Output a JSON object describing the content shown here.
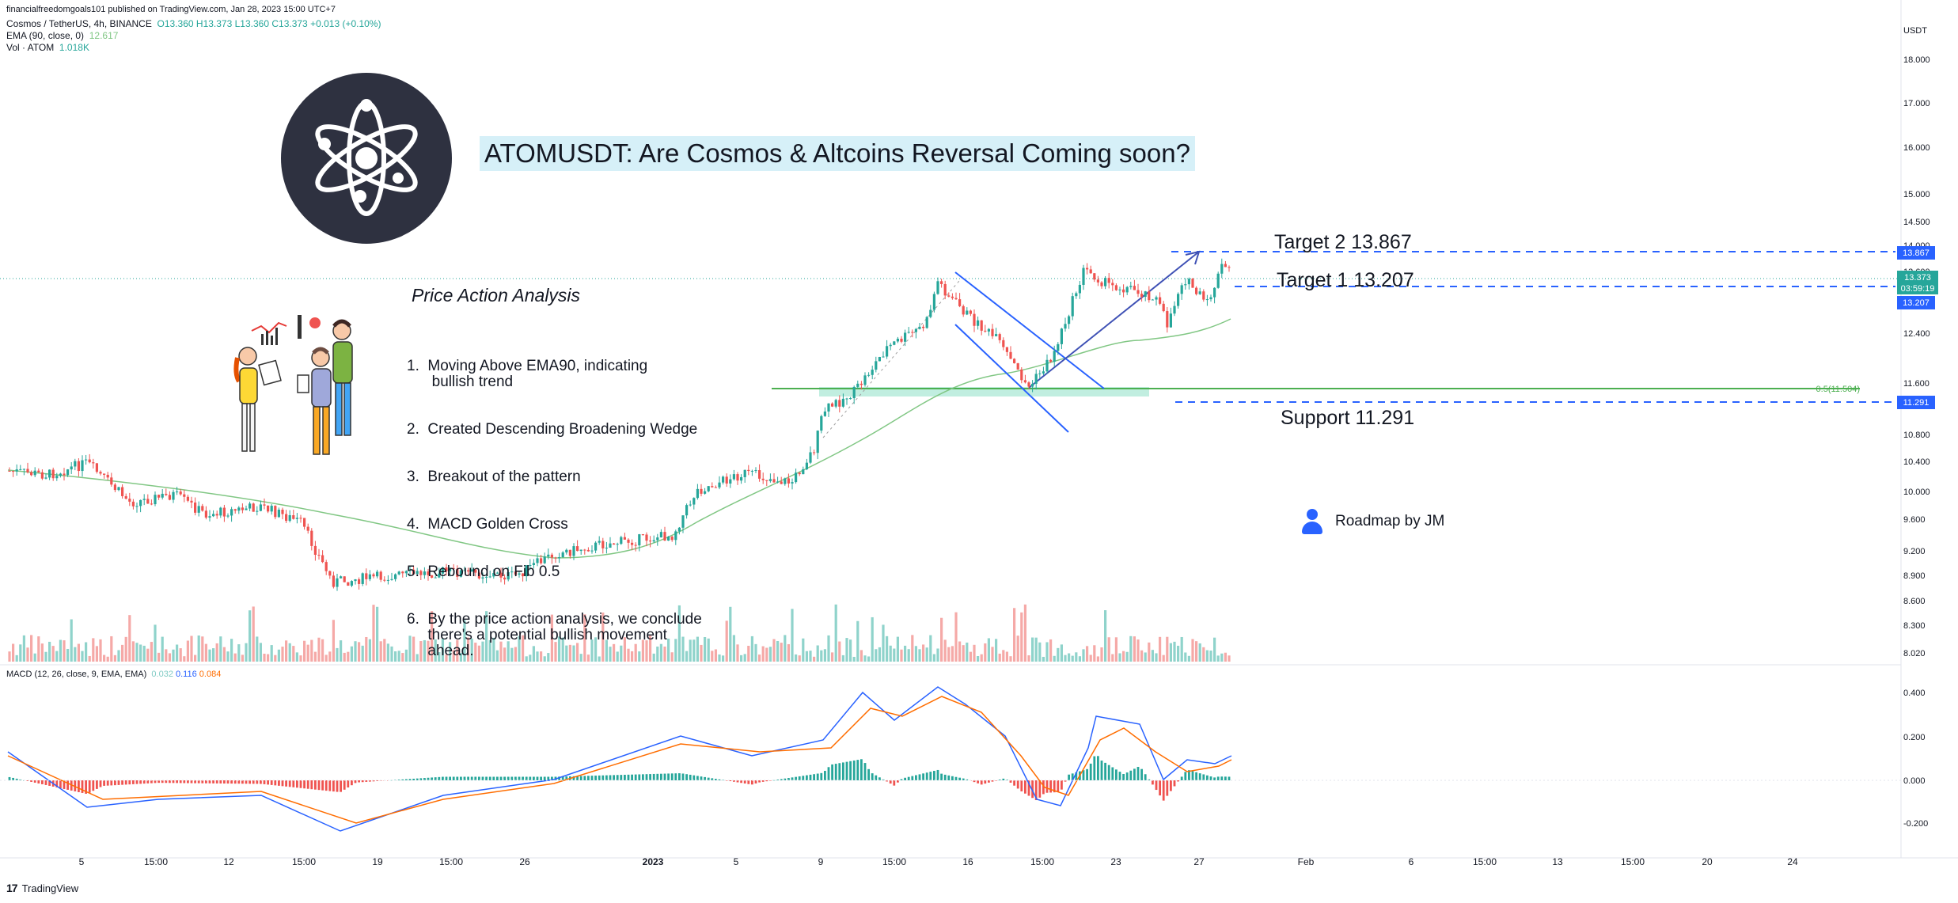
{
  "header": {
    "publisher": "financialfreedomgoals101 published on TradingView.com, Jan 28, 2023 15:00 UTC+7",
    "symbol": "Cosmos / TetherUS, 4h, BINANCE",
    "ohlc": {
      "o": "O13.360",
      "h": "H13.373",
      "l": "L13.360",
      "c": "C13.373",
      "chg": "+0.013 (+0.10%)"
    },
    "ema_label": "EMA (90, close, 0)",
    "ema_value": "12.617",
    "vol_label": "Vol · ATOM",
    "vol_value": "1.018K",
    "macd_label": "MACD (12, 26, close, 9, EMA, EMA)",
    "macd_values": [
      "0.032",
      "0.116",
      "0.084"
    ]
  },
  "title": "ATOMUSDT: Are Cosmos & Altcoins Reversal Coming soon?",
  "price_action": {
    "heading": "Price Action Analysis",
    "items": [
      "1.  Moving Above EMA90, indicating\n      bullish trend",
      "2.  Created Descending Broadening Wedge",
      "3.  Breakout of the pattern",
      "4.  MACD Golden Cross",
      "5.  Rebound on Fib 0.5",
      "6.  By the price action analysis, we conclude\n     there's a potential bullish movement\n     ahead."
    ]
  },
  "levels": {
    "target2": "Target 2  13.867",
    "target1": "Target 1  13.207",
    "support": "Support 11.291",
    "fib": "0.5(11.504)"
  },
  "roadmap": "Roadmap by JM",
  "price_axis": {
    "currency": "USDT",
    "ticks": [
      "18.000",
      "17.000",
      "16.000",
      "15.000",
      "14.500",
      "14.000",
      "13.600",
      "12.400",
      "11.600",
      "10.800",
      "10.400",
      "10.000",
      "9.600",
      "9.200",
      "8.900",
      "8.600",
      "8.300",
      "8.020"
    ],
    "tags": {
      "t2": "13.867",
      "last": "13.373",
      "countdown": "03:59:19",
      "t1": "13.207",
      "support": "11.291"
    }
  },
  "macd_axis": {
    "ticks": [
      "0.400",
      "0.200",
      "0.000",
      "-0.200"
    ]
  },
  "time_axis": {
    "labels": [
      "5",
      "15:00",
      "12",
      "15:00",
      "19",
      "15:00",
      "26",
      "2023",
      "5",
      "9",
      "15:00",
      "16",
      "15:00",
      "23",
      "27",
      "Feb",
      "6",
      "15:00",
      "13",
      "15:00",
      "20",
      "24"
    ]
  },
  "footer": {
    "brand": "TradingView"
  },
  "colors": {
    "up": "#26a69a",
    "down": "#ef5350",
    "ema": "#81c784",
    "macd": "#2962ff",
    "signal": "#ff6d00",
    "level": "#2962ff",
    "fib": "#4caf50",
    "title_bg": "#d6f0f8",
    "logo_bg": "#2e3140"
  },
  "icons": [
    "cosmos-logo-icon",
    "analysts-illustration-icon",
    "person-icon",
    "tradingview-logo-icon"
  ]
}
